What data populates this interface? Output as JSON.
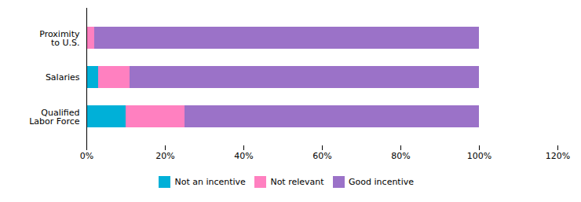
{
  "chart_data": {
    "type": "bar",
    "orientation": "horizontal",
    "stacked": true,
    "grid": false,
    "legend": "bottom",
    "categories": [
      "Qualified\nLabor Force",
      "Salaries",
      "Proximity\nto U.S."
    ],
    "series": [
      {
        "name": "Not an incentive",
        "color": "#00B0D8",
        "values": [
          10,
          3,
          0
        ]
      },
      {
        "name": "Not relevant",
        "color": "#FF80C0",
        "values": [
          15,
          8,
          2
        ]
      },
      {
        "name": "Good incentive",
        "color": "#9B72C8",
        "values": [
          75,
          89,
          98
        ]
      }
    ],
    "xlim": [
      0,
      120
    ],
    "xticks": [
      {
        "value": 0,
        "label": "0%"
      },
      {
        "value": 20,
        "label": "20%"
      },
      {
        "value": 40,
        "label": "40%"
      },
      {
        "value": 60,
        "label": "60%"
      },
      {
        "value": 80,
        "label": "80%"
      },
      {
        "value": 100,
        "label": "100%"
      },
      {
        "value": 120,
        "label": "120%"
      }
    ]
  }
}
